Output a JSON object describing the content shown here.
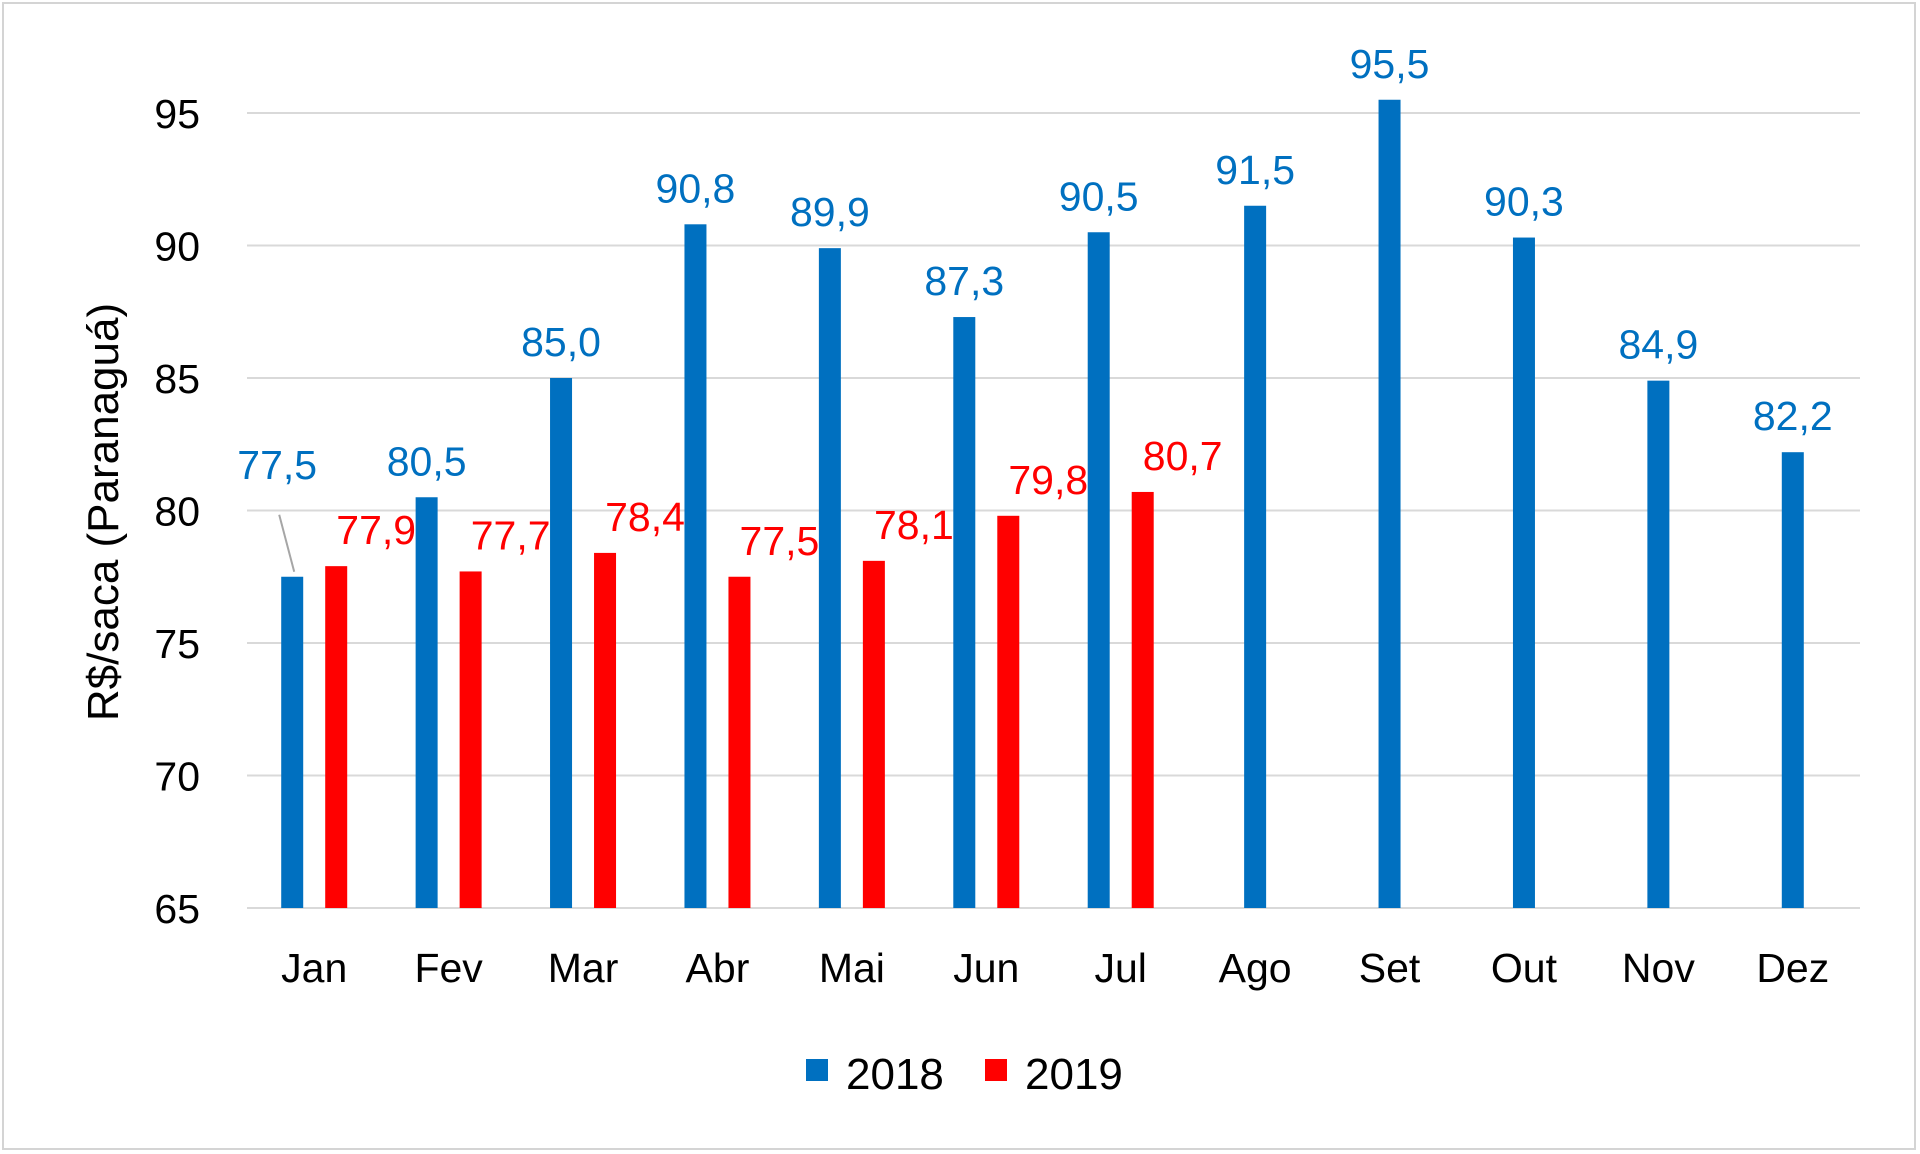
{
  "chart_data": {
    "type": "bar",
    "title": "",
    "xlabel": "",
    "ylabel": "R$/saca (Paranaguá)",
    "ylim": [
      65,
      95.5
    ],
    "yticks": [
      65,
      70,
      75,
      80,
      85,
      90,
      95
    ],
    "grid": true,
    "legend_position": "bottom",
    "categories": [
      "Jan",
      "Fev",
      "Mar",
      "Abr",
      "Mai",
      "Jun",
      "Jul",
      "Ago",
      "Set",
      "Out",
      "Nov",
      "Dez"
    ],
    "series": [
      {
        "name": "2018",
        "color": "#0070C0",
        "values": [
          77.5,
          80.5,
          85.0,
          90.8,
          89.9,
          87.3,
          90.5,
          91.5,
          95.5,
          90.3,
          84.9,
          82.2
        ],
        "labels": [
          "77,5",
          "80,5",
          "85,0",
          "90,8",
          "89,9",
          "87,3",
          "90,5",
          "91,5",
          "95,5",
          "90,3",
          "84,9",
          "82,2"
        ]
      },
      {
        "name": "2019",
        "color": "#FF0000",
        "values": [
          77.9,
          77.7,
          78.4,
          77.5,
          78.1,
          79.8,
          80.7,
          null,
          null,
          null,
          null,
          null
        ],
        "labels": [
          "77,9",
          "77,7",
          "78,4",
          "77,5",
          "78,1",
          "79,8",
          "80,7",
          null,
          null,
          null,
          null,
          null
        ]
      }
    ]
  }
}
